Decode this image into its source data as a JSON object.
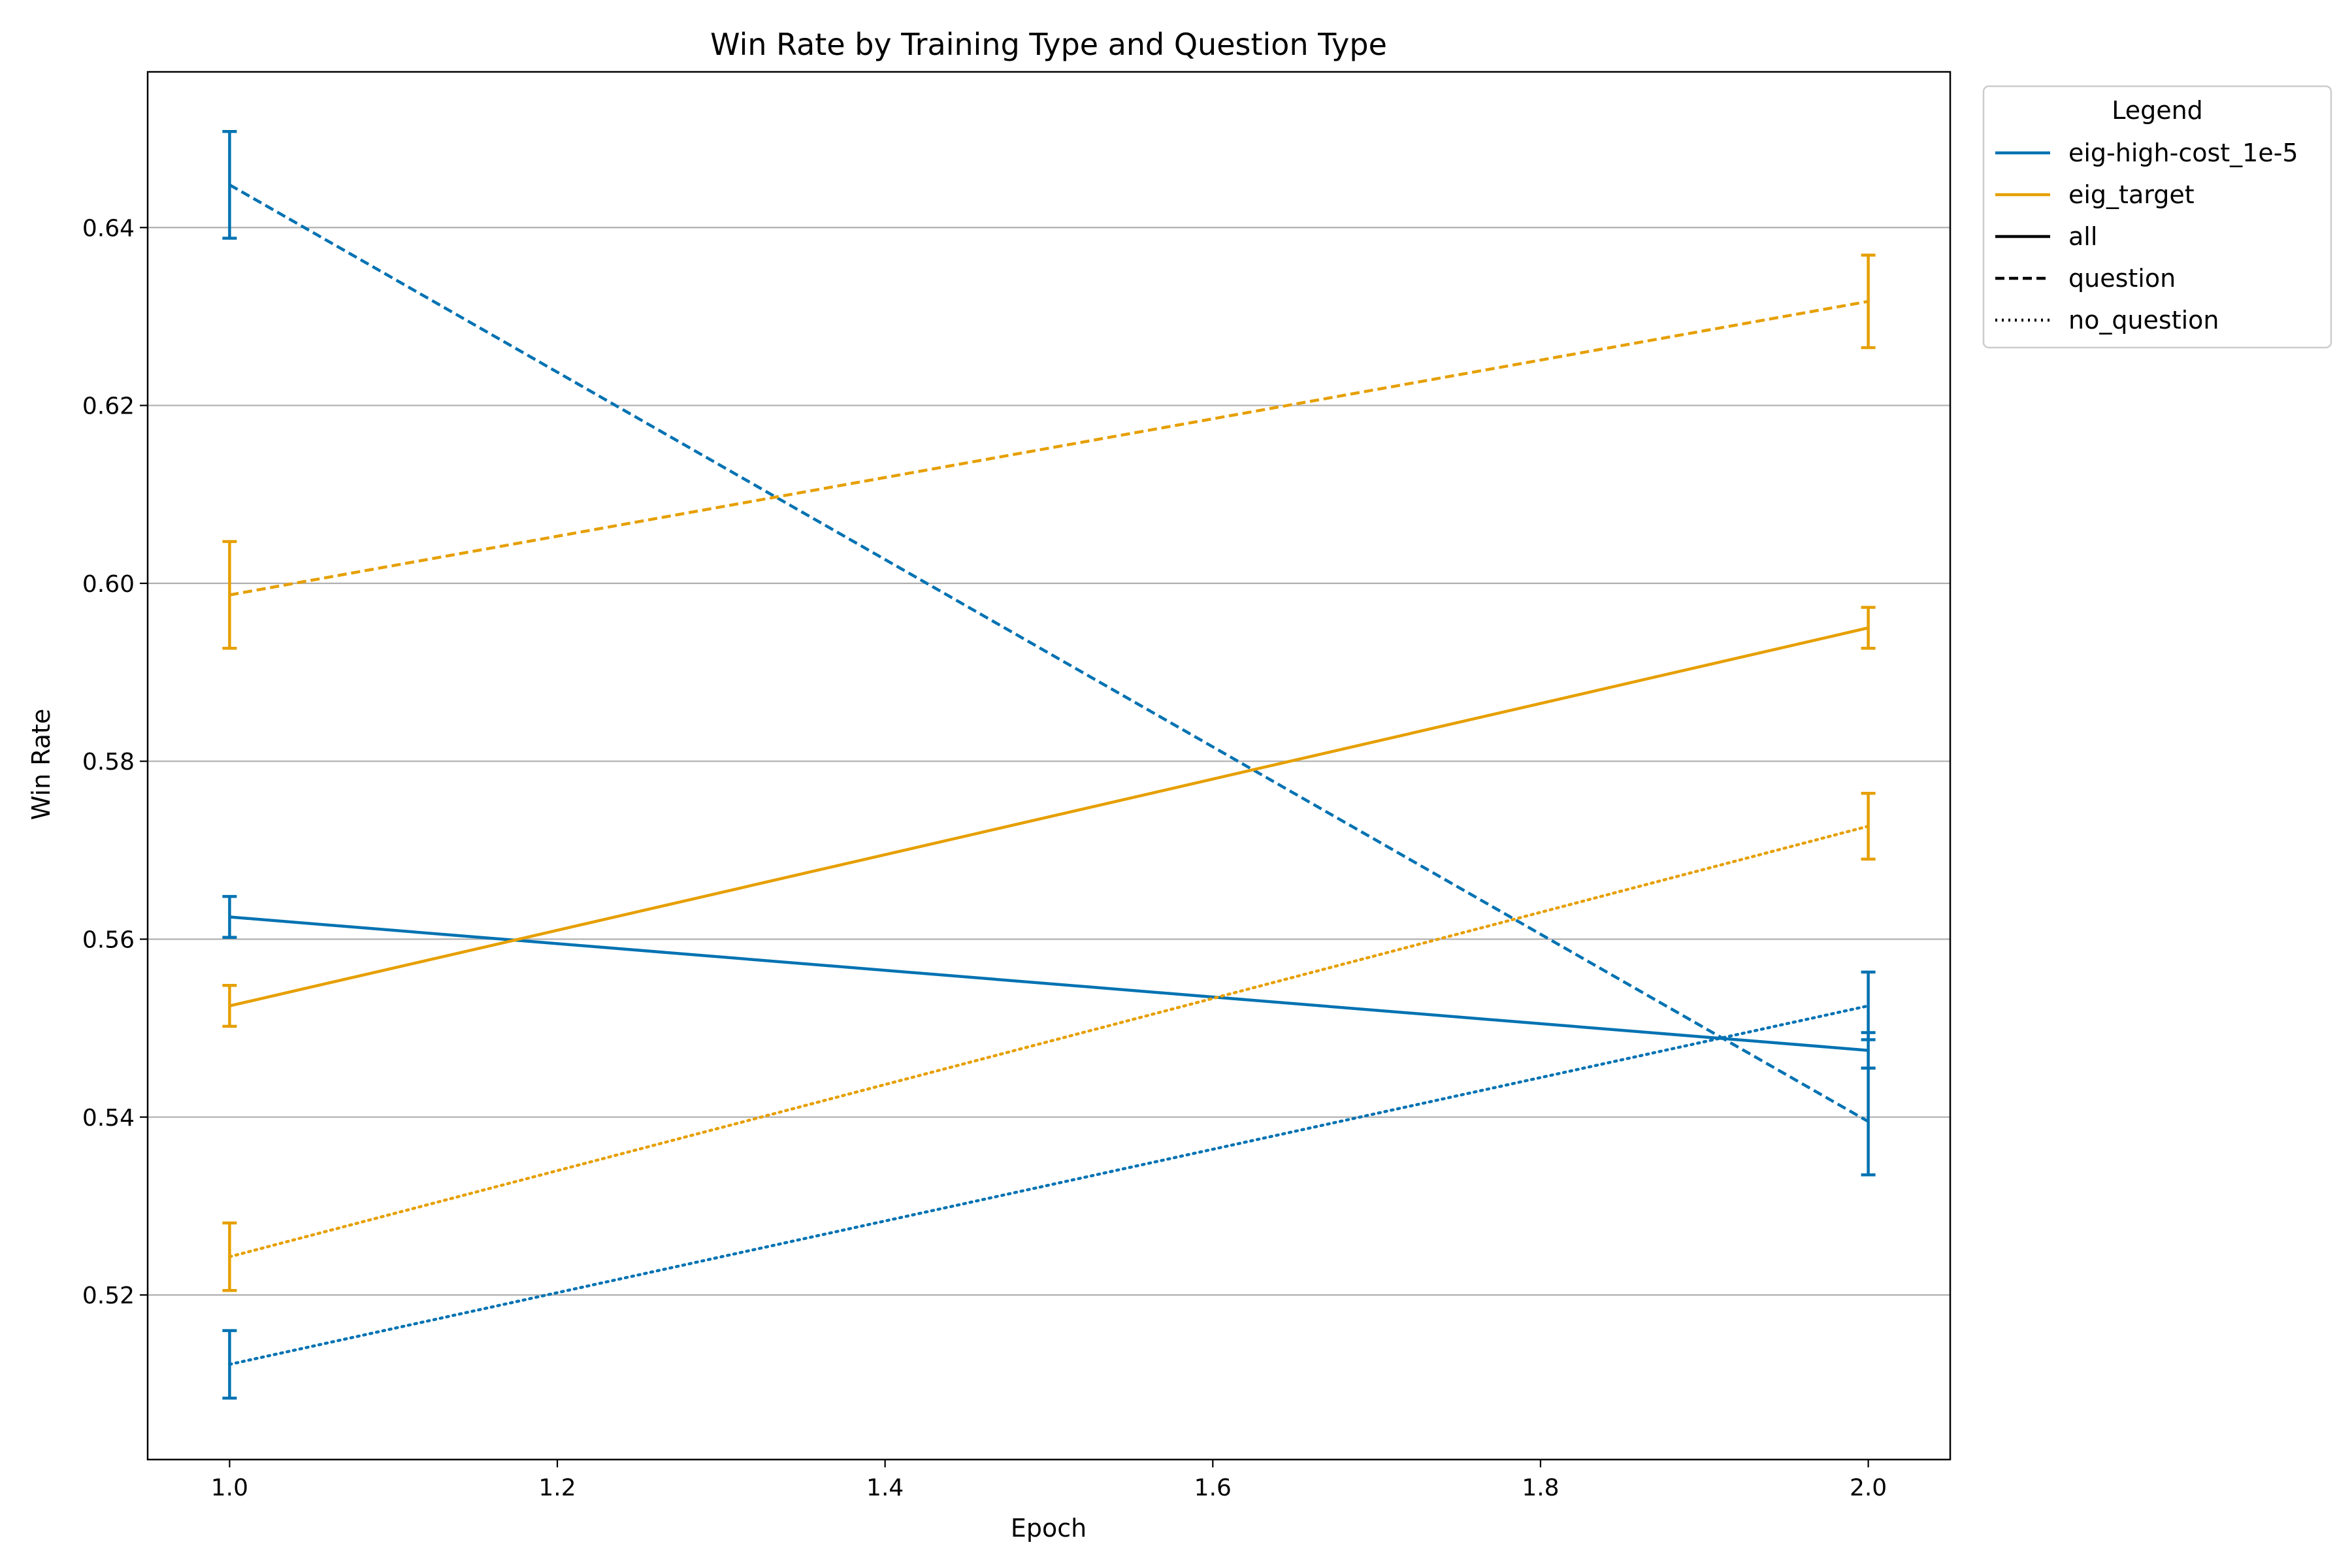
{
  "chart_data": {
    "type": "line",
    "title": "Win Rate by Training Type and Question Type",
    "xlabel": "Epoch",
    "ylabel": "Win Rate",
    "xlim": [
      0.95,
      2.05
    ],
    "ylim": [
      0.5015,
      0.6575
    ],
    "xticks": [
      1.0,
      1.2,
      1.4,
      1.6,
      1.8,
      2.0
    ],
    "xtick_labels": [
      "1.0",
      "1.2",
      "1.4",
      "1.6",
      "1.8",
      "2.0"
    ],
    "yticks": [
      0.52,
      0.54,
      0.56,
      0.58,
      0.6,
      0.62,
      0.64
    ],
    "ytick_labels": [
      "0.52",
      "0.54",
      "0.56",
      "0.58",
      "0.60",
      "0.62",
      "0.64"
    ],
    "grid": "horizontal",
    "legend": {
      "title": "Legend",
      "placement": "outside-top-right",
      "entries": [
        {
          "label": "eig-high-cost_1e-5",
          "color": "#0072B2",
          "style": "solid"
        },
        {
          "label": "eig_target",
          "color": "#E69F00",
          "style": "solid"
        },
        {
          "label": "all",
          "color": "#000000",
          "style": "solid"
        },
        {
          "label": "question",
          "color": "#000000",
          "style": "dashed"
        },
        {
          "label": "no_question",
          "color": "#000000",
          "style": "dotted"
        }
      ]
    },
    "series": [
      {
        "name": "eig-high-cost_1e-5 all",
        "color": "#0072B2",
        "style": "solid",
        "x": [
          1.0,
          2.0
        ],
        "y": [
          0.5625,
          0.5475
        ],
        "err": [
          0.0023,
          0.002
        ]
      },
      {
        "name": "eig-high-cost_1e-5 question",
        "color": "#0072B2",
        "style": "dashed",
        "x": [
          1.0,
          2.0
        ],
        "y": [
          0.6448,
          0.5395
        ],
        "err": [
          0.006,
          0.006
        ]
      },
      {
        "name": "eig-high-cost_1e-5 no_question",
        "color": "#0072B2",
        "style": "dotted",
        "x": [
          1.0,
          2.0
        ],
        "y": [
          0.5122,
          0.5525
        ],
        "err": [
          0.0038,
          0.0038
        ]
      },
      {
        "name": "eig_target all",
        "color": "#E69F00",
        "style": "solid",
        "x": [
          1.0,
          2.0
        ],
        "y": [
          0.5525,
          0.595
        ],
        "err": [
          0.0023,
          0.0023
        ]
      },
      {
        "name": "eig_target question",
        "color": "#E69F00",
        "style": "dashed",
        "x": [
          1.0,
          2.0
        ],
        "y": [
          0.5987,
          0.6317
        ],
        "err": [
          0.006,
          0.0052
        ]
      },
      {
        "name": "eig_target no_question",
        "color": "#E69F00",
        "style": "dotted",
        "x": [
          1.0,
          2.0
        ],
        "y": [
          0.5243,
          0.5727
        ],
        "err": [
          0.0038,
          0.0037
        ]
      }
    ]
  }
}
